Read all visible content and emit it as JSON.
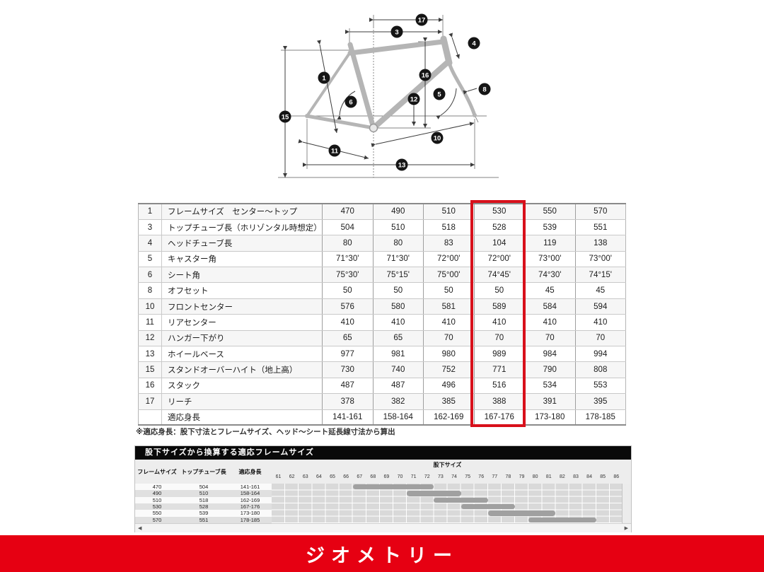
{
  "page": {
    "footer_label": "ジオメトリー",
    "footer_color": "#e60012"
  },
  "diagram": {
    "callouts": [
      "17",
      "3",
      "4",
      "1",
      "16",
      "6",
      "12",
      "5",
      "8",
      "15",
      "10",
      "11",
      "13"
    ]
  },
  "geometry_table": {
    "highlighted_value_column_index": 3,
    "rows": [
      {
        "num": "1",
        "label": "フレームサイズ　センター～トップ",
        "values": [
          "470",
          "490",
          "510",
          "530",
          "550",
          "570"
        ]
      },
      {
        "num": "3",
        "label": "トップチューブ長（ホリゾンタル時想定）",
        "values": [
          "504",
          "510",
          "518",
          "528",
          "539",
          "551"
        ]
      },
      {
        "num": "4",
        "label": "ヘッドチューブ長",
        "values": [
          "80",
          "80",
          "83",
          "104",
          "119",
          "138"
        ]
      },
      {
        "num": "5",
        "label": "キャスター角",
        "values": [
          "71°30'",
          "71°30'",
          "72°00'",
          "72°00'",
          "73°00'",
          "73°00'"
        ]
      },
      {
        "num": "6",
        "label": "シート角",
        "values": [
          "75°30'",
          "75°15'",
          "75°00'",
          "74°45'",
          "74°30'",
          "74°15'"
        ]
      },
      {
        "num": "8",
        "label": "オフセット",
        "values": [
          "50",
          "50",
          "50",
          "50",
          "45",
          "45"
        ]
      },
      {
        "num": "10",
        "label": "フロントセンター",
        "values": [
          "576",
          "580",
          "581",
          "589",
          "584",
          "594"
        ]
      },
      {
        "num": "11",
        "label": "リアセンター",
        "values": [
          "410",
          "410",
          "410",
          "410",
          "410",
          "410"
        ]
      },
      {
        "num": "12",
        "label": "ハンガー下がり",
        "values": [
          "65",
          "65",
          "70",
          "70",
          "70",
          "70"
        ]
      },
      {
        "num": "13",
        "label": "ホイールベース",
        "values": [
          "977",
          "981",
          "980",
          "989",
          "984",
          "994"
        ]
      },
      {
        "num": "15",
        "label": "スタンドオーバーハイト（地上高）",
        "values": [
          "730",
          "740",
          "752",
          "771",
          "790",
          "808"
        ]
      },
      {
        "num": "16",
        "label": "スタック",
        "values": [
          "487",
          "487",
          "496",
          "516",
          "534",
          "553"
        ]
      },
      {
        "num": "17",
        "label": "リーチ",
        "values": [
          "378",
          "382",
          "385",
          "388",
          "391",
          "395"
        ]
      },
      {
        "num": "",
        "label": "適応身長",
        "values": [
          "141-161",
          "158-164",
          "162-169",
          "167-176",
          "173-180",
          "178-185"
        ]
      }
    ]
  },
  "footnote": "※適応身長：股下寸法とフレームサイズ、ヘッド～シート延長線寸法から算出",
  "conversion_table": {
    "title": "股下サイズから換算する適応フレームサイズ",
    "headers": [
      "フレームサイズ",
      "トップチューブ長",
      "適応身長"
    ],
    "inseam_label": "股下サイズ",
    "inseam_sizes": [
      61,
      62,
      63,
      64,
      65,
      66,
      67,
      68,
      69,
      70,
      71,
      72,
      73,
      74,
      75,
      76,
      77,
      78,
      79,
      80,
      81,
      82,
      83,
      84,
      85,
      86
    ],
    "rows": [
      {
        "frame": "470",
        "top_tube": "504",
        "fit_height": "141-161",
        "inseam_range": [
          67,
          72
        ]
      },
      {
        "frame": "490",
        "top_tube": "510",
        "fit_height": "158-164",
        "inseam_range": [
          71,
          74
        ]
      },
      {
        "frame": "510",
        "top_tube": "518",
        "fit_height": "162-169",
        "inseam_range": [
          73,
          76
        ]
      },
      {
        "frame": "530",
        "top_tube": "528",
        "fit_height": "167-176",
        "inseam_range": [
          75,
          78
        ]
      },
      {
        "frame": "550",
        "top_tube": "539",
        "fit_height": "173-180",
        "inseam_range": [
          77,
          81
        ]
      },
      {
        "frame": "570",
        "top_tube": "551",
        "fit_height": "178-185",
        "inseam_range": [
          80,
          84
        ]
      }
    ]
  }
}
